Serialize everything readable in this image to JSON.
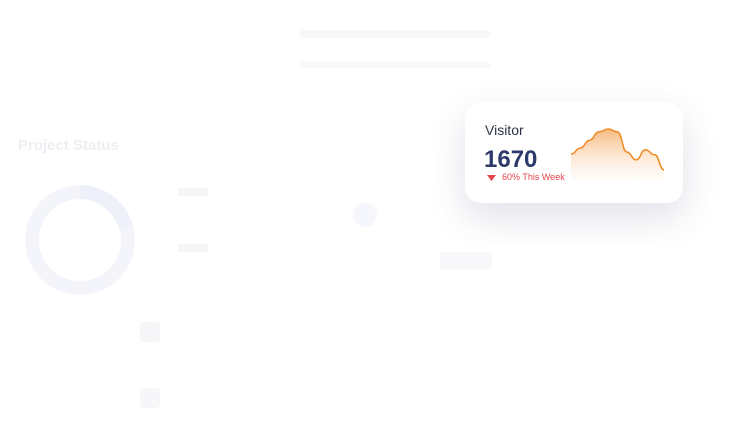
{
  "background": {
    "title": "Project Status"
  },
  "card": {
    "title": "Visitor",
    "value": "1670",
    "change": "60% This Week",
    "sparkline": {
      "type": "area",
      "color": "#f08a24",
      "ylim": [
        0,
        100
      ],
      "values": [
        46,
        57,
        71,
        86,
        91,
        86,
        50,
        36,
        54,
        45,
        18
      ]
    }
  }
}
